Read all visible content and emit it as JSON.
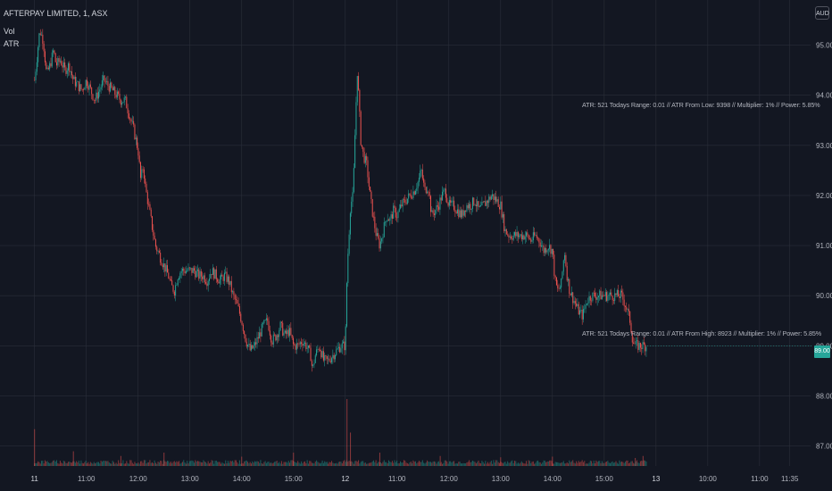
{
  "legend": {
    "symbol_line": "AFTERPAY LIMITED, 1, ASX",
    "volume_label": "Vol",
    "indicator_label": "ATR"
  },
  "currency": "AUD",
  "annotations": [
    "ATR: 521 Todays Range: 0.01 // ATR From Low: 9398 // Multiplier: 1% // Power: 5.85%",
    "ATR: 521 Todays Range: 0.01 // ATR From High: 8923 // Multiplier: 1% // Power: 5.85%"
  ],
  "last_price_label": "89.00",
  "colors": {
    "up": "#26a69a",
    "down": "#ef5350",
    "background": "#131722",
    "grid": "#2a2e39"
  },
  "chart_data": {
    "type": "candlestick",
    "title": "AFTERPAY LIMITED, 1, ASX",
    "y_ticks": [
      "95.00",
      "94.00",
      "93.00",
      "92.00",
      "91.00",
      "90.00",
      "89.00",
      "88.00",
      "87.00"
    ],
    "y_values": [
      95,
      94,
      93,
      92,
      91,
      90,
      89,
      88,
      87
    ],
    "ylim": [
      86.6,
      95.9
    ],
    "x_ticks": [
      {
        "label": "11",
        "t": 0,
        "bold": true
      },
      {
        "label": "11:00",
        "t": 60
      },
      {
        "label": "12:00",
        "t": 120
      },
      {
        "label": "13:00",
        "t": 180
      },
      {
        "label": "14:00",
        "t": 240
      },
      {
        "label": "15:00",
        "t": 300
      },
      {
        "label": "12",
        "t": 360,
        "bold": true
      },
      {
        "label": "11:00",
        "t": 420
      },
      {
        "label": "12:00",
        "t": 480
      },
      {
        "label": "13:00",
        "t": 540
      },
      {
        "label": "14:00",
        "t": 600
      },
      {
        "label": "15:00",
        "t": 660
      },
      {
        "label": "13",
        "t": 720,
        "bold": true
      },
      {
        "label": "10:00",
        "t": 780
      },
      {
        "label": "11:00",
        "t": 840
      },
      {
        "label": "11:35",
        "t": 875
      }
    ],
    "xlim": [
      -9,
      896
    ],
    "price_path": [
      [
        0,
        94.3
      ],
      [
        3,
        94.8
      ],
      [
        6,
        95.3
      ],
      [
        10,
        95.1
      ],
      [
        14,
        94.4
      ],
      [
        18,
        94.6
      ],
      [
        22,
        94.9
      ],
      [
        25,
        94.6
      ],
      [
        30,
        94.7
      ],
      [
        35,
        94.5
      ],
      [
        40,
        94.6
      ],
      [
        45,
        94.3
      ],
      [
        50,
        94.2
      ],
      [
        55,
        94.1
      ],
      [
        60,
        94.3
      ],
      [
        65,
        94.1
      ],
      [
        70,
        93.9
      ],
      [
        75,
        94.1
      ],
      [
        80,
        94.3
      ],
      [
        85,
        94.2
      ],
      [
        90,
        94.1
      ],
      [
        95,
        94.0
      ],
      [
        100,
        93.9
      ],
      [
        105,
        93.9
      ],
      [
        110,
        93.6
      ],
      [
        115,
        93.3
      ],
      [
        120,
        92.9
      ],
      [
        123,
        92.3
      ],
      [
        126,
        92.6
      ],
      [
        128,
        92.2
      ],
      [
        132,
        91.8
      ],
      [
        136,
        91.4
      ],
      [
        140,
        91.0
      ],
      [
        145,
        90.8
      ],
      [
        150,
        90.6
      ],
      [
        155,
        90.4
      ],
      [
        158,
        90.2
      ],
      [
        162,
        90.1
      ],
      [
        166,
        90.4
      ],
      [
        170,
        90.5
      ],
      [
        175,
        90.5
      ],
      [
        180,
        90.5
      ],
      [
        185,
        90.5
      ],
      [
        190,
        90.4
      ],
      [
        195,
        90.4
      ],
      [
        200,
        90.3
      ],
      [
        205,
        90.5
      ],
      [
        210,
        90.4
      ],
      [
        215,
        90.3
      ],
      [
        220,
        90.4
      ],
      [
        225,
        90.3
      ],
      [
        230,
        90.0
      ],
      [
        235,
        89.8
      ],
      [
        240,
        89.5
      ],
      [
        245,
        89.1
      ],
      [
        250,
        88.9
      ],
      [
        255,
        89.0
      ],
      [
        260,
        89.2
      ],
      [
        265,
        89.4
      ],
      [
        270,
        89.5
      ],
      [
        275,
        89.1
      ],
      [
        280,
        89.2
      ],
      [
        285,
        89.4
      ],
      [
        290,
        89.2
      ],
      [
        295,
        89.3
      ],
      [
        300,
        89.0
      ],
      [
        305,
        89.0
      ],
      [
        310,
        89.1
      ],
      [
        315,
        89.0
      ],
      [
        320,
        88.8
      ],
      [
        322,
        88.5
      ],
      [
        325,
        88.8
      ],
      [
        330,
        89.0
      ],
      [
        335,
        88.7
      ],
      [
        340,
        88.7
      ],
      [
        345,
        88.8
      ],
      [
        350,
        88.9
      ],
      [
        355,
        89.0
      ],
      [
        360,
        89.0
      ],
      [
        362,
        90.4
      ],
      [
        363,
        90.8
      ],
      [
        366,
        91.8
      ],
      [
        369,
        92.0
      ],
      [
        372,
        93.6
      ],
      [
        374,
        94.5
      ],
      [
        376,
        93.8
      ],
      [
        378,
        93.1
      ],
      [
        381,
        92.8
      ],
      [
        385,
        92.6
      ],
      [
        388,
        92.1
      ],
      [
        392,
        91.6
      ],
      [
        396,
        91.2
      ],
      [
        400,
        91.0
      ],
      [
        404,
        91.3
      ],
      [
        408,
        91.6
      ],
      [
        412,
        91.5
      ],
      [
        416,
        91.7
      ],
      [
        420,
        91.6
      ],
      [
        425,
        91.8
      ],
      [
        430,
        91.9
      ],
      [
        435,
        92.0
      ],
      [
        440,
        92.1
      ],
      [
        445,
        92.3
      ],
      [
        448,
        92.5
      ],
      [
        452,
        92.1
      ],
      [
        456,
        92.2
      ],
      [
        460,
        91.6
      ],
      [
        464,
        91.7
      ],
      [
        468,
        91.8
      ],
      [
        472,
        92.0
      ],
      [
        476,
        92.1
      ],
      [
        480,
        91.8
      ],
      [
        485,
        91.8
      ],
      [
        490,
        91.7
      ],
      [
        495,
        91.6
      ],
      [
        500,
        91.8
      ],
      [
        505,
        91.8
      ],
      [
        510,
        91.9
      ],
      [
        515,
        91.7
      ],
      [
        520,
        91.8
      ],
      [
        525,
        91.9
      ],
      [
        530,
        92.0
      ],
      [
        535,
        91.9
      ],
      [
        540,
        91.8
      ],
      [
        545,
        91.3
      ],
      [
        550,
        91.2
      ],
      [
        555,
        91.2
      ],
      [
        560,
        91.2
      ],
      [
        565,
        91.2
      ],
      [
        570,
        91.2
      ],
      [
        575,
        91.1
      ],
      [
        580,
        91.2
      ],
      [
        585,
        91.1
      ],
      [
        590,
        90.9
      ],
      [
        595,
        91.0
      ],
      [
        600,
        90.9
      ],
      [
        603,
        90.3
      ],
      [
        606,
        90.1
      ],
      [
        610,
        90.2
      ],
      [
        614,
        90.9
      ],
      [
        617,
        90.4
      ],
      [
        620,
        90.1
      ],
      [
        625,
        89.9
      ],
      [
        630,
        89.7
      ],
      [
        635,
        89.6
      ],
      [
        640,
        89.9
      ],
      [
        645,
        90.0
      ],
      [
        650,
        90.0
      ],
      [
        655,
        90.0
      ],
      [
        660,
        90.0
      ],
      [
        665,
        90.0
      ],
      [
        670,
        90.0
      ],
      [
        675,
        90.0
      ],
      [
        680,
        90.0
      ],
      [
        685,
        89.8
      ],
      [
        690,
        89.5
      ],
      [
        693,
        89.1
      ],
      [
        696,
        89.0
      ],
      [
        700,
        89.0
      ],
      [
        705,
        89.0
      ],
      [
        710,
        89.0
      ]
    ],
    "volume_spikes": [
      {
        "t": 0,
        "v": 0.55
      },
      {
        "t": 45,
        "v": 0.22
      },
      {
        "t": 100,
        "v": 0.15
      },
      {
        "t": 150,
        "v": 0.2
      },
      {
        "t": 240,
        "v": 0.14
      },
      {
        "t": 300,
        "v": 0.2
      },
      {
        "t": 362,
        "v": 1.0
      },
      {
        "t": 366,
        "v": 0.5
      },
      {
        "t": 400,
        "v": 0.2
      },
      {
        "t": 470,
        "v": 0.15
      },
      {
        "t": 540,
        "v": 0.13
      },
      {
        "t": 600,
        "v": 0.14
      },
      {
        "t": 696,
        "v": 0.12
      },
      {
        "t": 705,
        "v": 0.15
      }
    ],
    "volume_scale_max": 1.0
  }
}
